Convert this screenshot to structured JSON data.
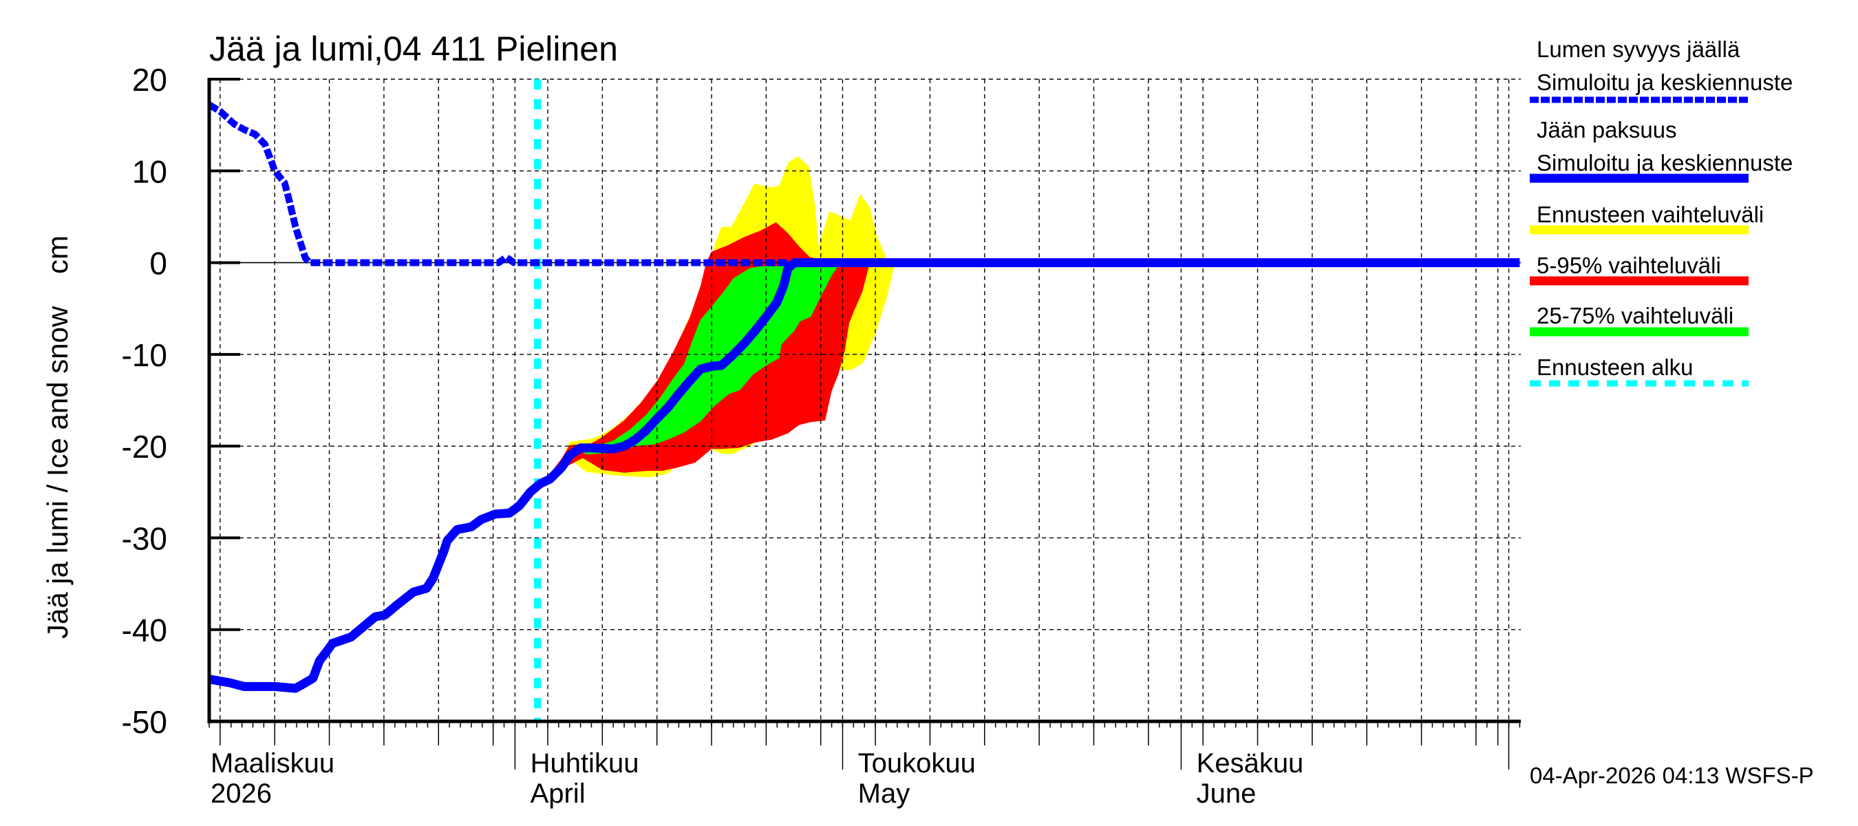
{
  "chart_data": {
    "type": "area",
    "title": "Jää ja lumi,04 411 Pielinen",
    "ylabel": "Jää ja lumi / Ice and snow    cm",
    "xlabel": "",
    "ylim": [
      -50,
      20
    ],
    "yticks": [
      20,
      10,
      0,
      -10,
      -20,
      -30,
      -40,
      -50
    ],
    "grid": true,
    "legend_position": "right",
    "x_axis": {
      "unit": "day offset from axis start (approx. 4 March 2026)",
      "range_days": [
        0,
        120
      ],
      "month_boundaries_day": [
        28,
        58,
        89,
        119
      ],
      "month_labels": [
        {
          "fi": "Maaliskuu",
          "en": "2026",
          "day": -1.6
        },
        {
          "fi": "Huhtikuu",
          "en": "April",
          "day": 29.4
        },
        {
          "fi": "Toukokuu",
          "en": "May",
          "day": 59.4
        },
        {
          "fi": "Kesäkuu",
          "en": "June",
          "day": 90.4
        }
      ],
      "gridline_days": [
        1,
        6,
        11,
        16,
        21,
        26,
        31,
        36,
        41,
        46,
        51,
        56,
        61,
        66,
        71,
        76,
        81,
        86,
        91,
        96,
        101,
        106,
        111,
        116,
        118
      ]
    },
    "forecast_start_day": 30.06,
    "series": [
      {
        "name": "Lumen syvyys jäällä – Simuloitu ja keskiennuste",
        "style": "dashed",
        "color": "#0000ff",
        "points": [
          [
            0,
            17.2
          ],
          [
            1,
            16.5
          ],
          [
            2.3,
            15.1
          ],
          [
            3.2,
            14.5
          ],
          [
            4.2,
            14.0
          ],
          [
            5.1,
            12.9
          ],
          [
            5.7,
            11.0
          ],
          [
            6.0,
            10.0
          ],
          [
            6.9,
            8.7
          ],
          [
            7.3,
            6.9
          ],
          [
            7.9,
            3.9
          ],
          [
            8.8,
            0.5
          ],
          [
            9.2,
            0
          ],
          [
            26.5,
            0
          ],
          [
            27.2,
            0.6
          ],
          [
            27.9,
            0
          ],
          [
            53,
            0
          ]
        ]
      },
      {
        "name": "Jään paksuus – Simuloitu ja keskiennuste",
        "style": "solid",
        "color": "#0000ff",
        "points": [
          [
            0,
            -45.4
          ],
          [
            1.9,
            -45.8
          ],
          [
            3.2,
            -46.2
          ],
          [
            6.0,
            -46.2
          ],
          [
            7.9,
            -46.4
          ],
          [
            8.5,
            -46.0
          ],
          [
            9.5,
            -45.3
          ],
          [
            10.1,
            -43.4
          ],
          [
            10.8,
            -42.3
          ],
          [
            11.3,
            -41.5
          ],
          [
            13.0,
            -40.8
          ],
          [
            13.6,
            -40.2
          ],
          [
            15.2,
            -38.6
          ],
          [
            16.1,
            -38.4
          ],
          [
            17.1,
            -37.4
          ],
          [
            18.7,
            -35.9
          ],
          [
            19.9,
            -35.5
          ],
          [
            20.5,
            -34.4
          ],
          [
            21.5,
            -31.4
          ],
          [
            21.8,
            -30.3
          ],
          [
            22.7,
            -29.1
          ],
          [
            24.0,
            -28.8
          ],
          [
            24.9,
            -28.0
          ],
          [
            26.2,
            -27.4
          ],
          [
            27.5,
            -27.3
          ],
          [
            28.4,
            -26.5
          ],
          [
            29.4,
            -25.0
          ],
          [
            30.3,
            -24.1
          ],
          [
            31.2,
            -23.6
          ],
          [
            32.3,
            -22.3
          ],
          [
            33.0,
            -21.0
          ],
          [
            34.0,
            -20.2
          ],
          [
            35.0,
            -20.2
          ],
          [
            37.0,
            -20.3
          ],
          [
            38.0,
            -20.0
          ],
          [
            39.0,
            -19.3
          ],
          [
            40.0,
            -18.3
          ],
          [
            41.0,
            -17.0
          ],
          [
            42.0,
            -15.8
          ],
          [
            43.0,
            -14.3
          ],
          [
            44.0,
            -12.9
          ],
          [
            45.0,
            -11.6
          ],
          [
            46.0,
            -11.3
          ],
          [
            46.9,
            -11.2
          ],
          [
            48.0,
            -10.0
          ],
          [
            49.0,
            -8.8
          ],
          [
            50.0,
            -7.4
          ],
          [
            51.0,
            -5.9
          ],
          [
            52.0,
            -4.3
          ],
          [
            52.6,
            -2.5
          ],
          [
            53.0,
            -0.6
          ],
          [
            53.6,
            0
          ],
          [
            120,
            0
          ]
        ]
      }
    ],
    "bands": [
      {
        "name": "Ennusteen vaihteluväli",
        "color": "#ffff00",
        "upper": [
          [
            30.06,
            -24.4
          ],
          [
            31.2,
            -23.2
          ],
          [
            32.3,
            -21.5
          ],
          [
            33.0,
            -19.5
          ],
          [
            34.5,
            -19.3
          ],
          [
            35.5,
            -19.0
          ],
          [
            37.0,
            -18.0
          ],
          [
            38.5,
            -16.5
          ],
          [
            40.0,
            -14.6
          ],
          [
            41.5,
            -12.0
          ],
          [
            43.0,
            -8.5
          ],
          [
            44.5,
            -4.5
          ],
          [
            45.5,
            -1.0
          ],
          [
            46.0,
            0
          ],
          [
            46.3,
            2.0
          ],
          [
            46.9,
            3.9
          ],
          [
            47.8,
            3.9
          ],
          [
            49.0,
            6.5
          ],
          [
            49.9,
            8.6
          ],
          [
            51.5,
            8.2
          ],
          [
            52.2,
            8.4
          ],
          [
            53.0,
            10.9
          ],
          [
            53.9,
            11.6
          ],
          [
            54.9,
            10.5
          ],
          [
            55.5,
            6.0
          ],
          [
            55.8,
            1.8
          ],
          [
            56.8,
            5.6
          ],
          [
            58.0,
            5.0
          ],
          [
            58.7,
            4.6
          ],
          [
            59.6,
            7.5
          ],
          [
            60.5,
            6.0
          ],
          [
            61.1,
            3.0
          ],
          [
            62.0,
            0.5
          ],
          [
            62.8,
            0
          ]
        ],
        "lower": [
          [
            62.8,
            0
          ],
          [
            62.1,
            -3.6
          ],
          [
            61.0,
            -7.7
          ],
          [
            59.9,
            -10.9
          ],
          [
            58.8,
            -11.7
          ],
          [
            58.9,
            -11.7
          ],
          [
            57.0,
            -11.7
          ],
          [
            56.0,
            -13.2
          ],
          [
            55.0,
            -15.2
          ],
          [
            54.0,
            -16.9
          ],
          [
            53.0,
            -18.1
          ],
          [
            51.5,
            -18.1
          ],
          [
            49.7,
            -19.9
          ],
          [
            47.8,
            -20.9
          ],
          [
            46.9,
            -20.8
          ],
          [
            45.0,
            -19.8
          ],
          [
            44.0,
            -20.7
          ],
          [
            42.0,
            -23.0
          ],
          [
            40.3,
            -23.4
          ],
          [
            37.0,
            -23.2
          ],
          [
            34.5,
            -22.8
          ],
          [
            33.0,
            -21.4
          ],
          [
            31.7,
            -22.6
          ],
          [
            30.3,
            -24.1
          ],
          [
            30.06,
            -24.4
          ]
        ]
      },
      {
        "name": "5-95% vaihteluväli",
        "color": "#ff0000",
        "upper": [
          [
            30.06,
            -24.4
          ],
          [
            31.2,
            -23.0
          ],
          [
            32.3,
            -21.3
          ],
          [
            33.0,
            -19.9
          ],
          [
            35.0,
            -19.7
          ],
          [
            36.0,
            -19.0
          ],
          [
            38.0,
            -17.2
          ],
          [
            39.5,
            -15.3
          ],
          [
            41.0,
            -12.9
          ],
          [
            42.5,
            -9.7
          ],
          [
            44.0,
            -6.0
          ],
          [
            45.0,
            -2.5
          ],
          [
            45.5,
            0
          ],
          [
            46.0,
            1.2
          ],
          [
            47.5,
            1.9
          ],
          [
            49.0,
            2.8
          ],
          [
            50.5,
            3.5
          ],
          [
            51.9,
            4.4
          ],
          [
            53.0,
            3.2
          ],
          [
            54.0,
            1.8
          ],
          [
            55.0,
            0.6
          ],
          [
            56.5,
            0.2
          ],
          [
            57.5,
            0
          ],
          [
            62.2,
            0
          ],
          [
            60.5,
            0
          ],
          [
            59.8,
            -3.2
          ],
          [
            59.0,
            -5.4
          ],
          [
            58.6,
            -6.6
          ],
          [
            58.2,
            -9.6
          ],
          [
            57.6,
            -12.2
          ],
          [
            57.0,
            -14.0
          ],
          [
            56.4,
            -17.2
          ],
          [
            55.0,
            -17.4
          ],
          [
            54.0,
            -17.7
          ],
          [
            53.0,
            -18.6
          ],
          [
            51.5,
            -19.3
          ],
          [
            50.0,
            -19.6
          ],
          [
            48.5,
            -20.2
          ],
          [
            47.0,
            -20.3
          ],
          [
            46.0,
            -20.3
          ],
          [
            44.5,
            -21.8
          ],
          [
            43.0,
            -22.3
          ],
          [
            41.5,
            -22.7
          ],
          [
            40.0,
            -22.7
          ],
          [
            38.0,
            -22.9
          ],
          [
            36.0,
            -22.6
          ],
          [
            34.2,
            -21.3
          ],
          [
            32.6,
            -22.3
          ],
          [
            31.2,
            -23.6
          ],
          [
            30.06,
            -24.4
          ]
        ],
        "lower": []
      },
      {
        "name": "25-75% vaihteluväli",
        "color": "#00ff00",
        "upper": [
          [
            33.6,
            -20.2
          ],
          [
            35.5,
            -20.0
          ],
          [
            37.0,
            -19.4
          ],
          [
            38.5,
            -18.2
          ],
          [
            40.0,
            -16.6
          ],
          [
            41.3,
            -14.7
          ],
          [
            42.5,
            -12.6
          ],
          [
            43.5,
            -11.0
          ],
          [
            44.2,
            -8.6
          ],
          [
            45.0,
            -6.2
          ],
          [
            46.0,
            -4.8
          ],
          [
            47.2,
            -3.0
          ],
          [
            48.0,
            -1.7
          ],
          [
            49.5,
            -0.6
          ],
          [
            50.5,
            -0.4
          ],
          [
            52.0,
            -0.4
          ],
          [
            52.6,
            0
          ],
          [
            57.8,
            0
          ],
          [
            57.0,
            -1.4
          ],
          [
            55.7,
            -4.4
          ],
          [
            55.1,
            -5.9
          ],
          [
            54.1,
            -6.4
          ],
          [
            53.6,
            -7.4
          ],
          [
            52.4,
            -8.9
          ],
          [
            52.2,
            -10.4
          ],
          [
            51.0,
            -11.2
          ],
          [
            49.8,
            -12.2
          ],
          [
            48.6,
            -13.9
          ],
          [
            47.6,
            -14.3
          ],
          [
            46.2,
            -15.7
          ],
          [
            45.0,
            -17.3
          ],
          [
            43.5,
            -18.5
          ],
          [
            42.2,
            -19.2
          ],
          [
            40.8,
            -19.8
          ],
          [
            39.0,
            -20.0
          ],
          [
            37.5,
            -20.6
          ],
          [
            36.0,
            -20.8
          ],
          [
            34.5,
            -20.9
          ],
          [
            33.6,
            -20.2
          ]
        ],
        "lower": []
      }
    ]
  },
  "legend": {
    "items": [
      {
        "line1": "Lumen syvyys jäällä",
        "line2": "Simuloitu ja keskiennuste",
        "color": "#0000ff",
        "style": "dashed-thick"
      },
      {
        "line1": "Jään paksuus",
        "line2": "Simuloitu ja keskiennuste",
        "color": "#0000ff",
        "style": "solid-thick"
      },
      {
        "line1": "Ennusteen vaihteluväli",
        "line2": "",
        "color": "#ffff00",
        "style": "solid-thick"
      },
      {
        "line1": "5-95% vaihteluväli",
        "line2": "",
        "color": "#ff0000",
        "style": "solid-thick"
      },
      {
        "line1": "25-75% vaihteluväli",
        "line2": "",
        "color": "#00ff00",
        "style": "solid-thick"
      },
      {
        "line1": "Ennusteen alku",
        "line2": "",
        "color": "#00ffff",
        "style": "dashed"
      }
    ]
  },
  "footer": {
    "timestamp": "04-Apr-2026 04:13 WSFS-P"
  }
}
